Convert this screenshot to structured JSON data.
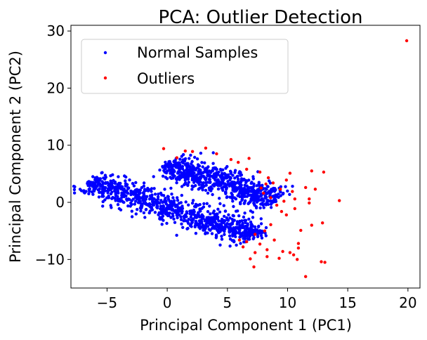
{
  "chart_data": {
    "type": "scatter",
    "title": "PCA: Outlier Detection",
    "xlabel": "Principal Component 1 (PC1)",
    "ylabel": "Principal Component 2 (PC2)",
    "xlim": [
      -8,
      21
    ],
    "ylim": [
      -15,
      31
    ],
    "xticks": [
      -5,
      0,
      5,
      10,
      15,
      20
    ],
    "yticks": [
      -10,
      0,
      10,
      20,
      30
    ],
    "grid": false,
    "legend_position": "top-left",
    "series": [
      {
        "name": "Normal Samples",
        "color": "#0000ff",
        "clusters": [
          {
            "from": [
              -6.5,
              3.5
            ],
            "to": [
              7.5,
              -6.0
            ],
            "width": 1.1,
            "count": 900
          },
          {
            "from": [
              0.0,
              6.5
            ],
            "to": [
              9.0,
              0.5
            ],
            "width": 1.2,
            "count": 700
          }
        ]
      },
      {
        "name": "Outliers",
        "color": "#ff0000",
        "points": [
          [
            19.9,
            28.3
          ],
          [
            14.3,
            0.3
          ],
          [
            13.0,
            5.3
          ],
          [
            12.0,
            5.5
          ],
          [
            11.5,
            2.6
          ],
          [
            11.8,
            -0.1
          ],
          [
            12.0,
            -4.0
          ],
          [
            12.9,
            -3.6
          ],
          [
            13.1,
            -10.5
          ],
          [
            12.8,
            -10.4
          ],
          [
            11.5,
            -13.0
          ],
          [
            10.8,
            -10.0
          ],
          [
            10.5,
            -9.2
          ],
          [
            10.9,
            -8.0
          ],
          [
            9.6,
            -8.6
          ],
          [
            8.3,
            -8.3
          ],
          [
            7.2,
            -11.3
          ],
          [
            6.9,
            -9.9
          ],
          [
            7.7,
            -7.3
          ],
          [
            6.6,
            -6.9
          ],
          [
            6.0,
            -6.6
          ],
          [
            7.3,
            -5.6
          ],
          [
            8.1,
            -5.0
          ],
          [
            8.6,
            -3.9
          ],
          [
            9.7,
            0.2
          ],
          [
            10.6,
            0.6
          ],
          [
            9.4,
            2.3
          ],
          [
            9.9,
            3.9
          ],
          [
            10.6,
            -1.1
          ],
          [
            11.8,
            0.6
          ],
          [
            8.4,
            4.3
          ],
          [
            8.8,
            3.4
          ],
          [
            7.7,
            5.3
          ],
          [
            6.6,
            5.8
          ],
          [
            5.3,
            7.5
          ],
          [
            4.1,
            8.5
          ],
          [
            3.2,
            9.5
          ],
          [
            2.1,
            8.9
          ],
          [
            1.5,
            9.0
          ],
          [
            -0.3,
            9.4
          ],
          [
            0.8,
            7.8
          ],
          [
            5.9,
            7.0
          ],
          [
            6.8,
            7.7
          ],
          [
            12.3,
            2.3
          ],
          [
            10.2,
            5.1
          ],
          [
            10.4,
            1.9
          ],
          [
            9.1,
            -0.5
          ],
          [
            8.0,
            1.6
          ],
          [
            8.6,
            0.8
          ],
          [
            9.5,
            -1.6
          ],
          [
            9.9,
            -2.2
          ],
          [
            10.9,
            -7.2
          ],
          [
            10.2,
            -8.8
          ],
          [
            8.9,
            -6.6
          ],
          [
            9.3,
            -9.8
          ],
          [
            7.3,
            -8.8
          ],
          [
            6.3,
            -7.8
          ],
          [
            8.3,
            -9.5
          ],
          [
            11.1,
            -4.9
          ],
          [
            7.8,
            2.5
          ],
          [
            8.2,
            3.2
          ]
        ]
      }
    ]
  }
}
